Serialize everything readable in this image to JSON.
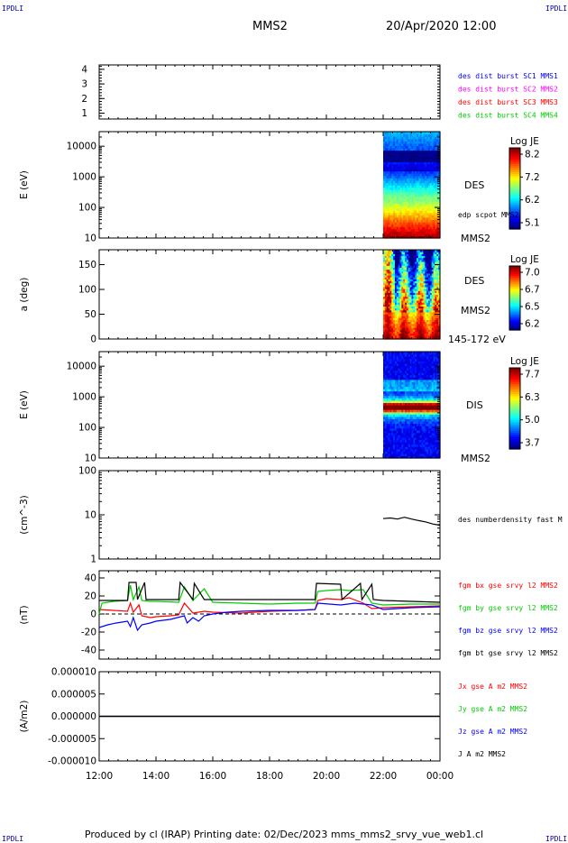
{
  "header": {
    "corner_label": "IPDLI",
    "spacecraft": "MMS2",
    "datetime": "20/Apr/2020 12:00"
  },
  "footer": {
    "text": "Produced by cl (IRAP)   Printing date: 02/Dec/2023   mms_mms2_srvy_vue_web1.cl"
  },
  "colors": {
    "mms1": "#0000ff",
    "mms2": "#ff00ff",
    "mms3": "#ff0000",
    "mms4": "#00cc00",
    "bx": "#ff0000",
    "by": "#00cc00",
    "bz": "#0000ff",
    "bt": "#000000"
  },
  "chart_data": [
    {
      "type": "line",
      "id": "availability",
      "xaxis": {
        "ticks": [
          "12:00",
          "14:00",
          "16:00",
          "18:00",
          "20:00",
          "22:00",
          "00:00"
        ]
      },
      "yticks": [
        "1",
        "2",
        "3",
        "4"
      ],
      "ylim": [
        0.6,
        4.3
      ],
      "legend": [
        "des dist burst SC1 MMS1",
        "des dist burst SC2 MMS2",
        "des dist burst SC3 MMS3",
        "des dist burst SC4 MMS4"
      ],
      "legend_colors": [
        "#0000ff",
        "#ff00ff",
        "#ff0000",
        "#00cc00"
      ]
    },
    {
      "type": "heatmap",
      "id": "des-energy",
      "ylabel": "E (eV)",
      "yticks": [
        "10",
        "100",
        "1000",
        "10000"
      ],
      "yscale": "log",
      "ylim": [
        10,
        30000
      ],
      "xrange_data": [
        "22:00",
        "00:00"
      ],
      "colorbar": {
        "title": "Log JE",
        "ticks": [
          "8.2",
          "7.2",
          "6.2",
          "5.1"
        ]
      },
      "right_labels": [
        "DES",
        "edp scpot MMS2",
        "MMS2"
      ]
    },
    {
      "type": "heatmap",
      "id": "des-pitch",
      "ylabel": "a (deg)",
      "yticks": [
        "0",
        "50",
        "100",
        "150"
      ],
      "ylim": [
        0,
        180
      ],
      "xrange_data": [
        "22:00",
        "00:00"
      ],
      "colorbar": {
        "title": "Log JE",
        "ticks": [
          "7.0",
          "6.7",
          "6.5",
          "6.2"
        ]
      },
      "right_labels": [
        "DES",
        "MMS2",
        "145-172 eV"
      ]
    },
    {
      "type": "heatmap",
      "id": "dis-energy",
      "ylabel": "E (eV)",
      "yticks": [
        "10",
        "100",
        "1000",
        "10000"
      ],
      "yscale": "log",
      "ylim": [
        10,
        30000
      ],
      "xrange_data": [
        "22:00",
        "00:00"
      ],
      "colorbar": {
        "title": "Log JE",
        "ticks": [
          "7.7",
          "6.3",
          "5.0",
          "3.7"
        ]
      },
      "right_labels": [
        "DIS",
        "MMS2"
      ]
    },
    {
      "type": "line",
      "id": "density",
      "ylabel": "(cm^-3)",
      "yticks": [
        "1",
        "10",
        "100"
      ],
      "yscale": "log",
      "ylim": [
        1,
        100
      ],
      "series": [
        {
          "name": "des numberdensity fast M",
          "color": "#000000",
          "x": [
            22.0,
            22.25,
            22.5,
            22.75,
            23.0,
            23.25,
            23.5,
            23.75,
            24.0
          ],
          "y": [
            8.2,
            8.5,
            8.0,
            8.8,
            8.0,
            7.4,
            6.9,
            6.2,
            5.8
          ]
        }
      ]
    },
    {
      "type": "line",
      "id": "fgm",
      "ylabel": "(nT)",
      "yticks": [
        "-40",
        "-20",
        "0",
        "20",
        "40"
      ],
      "ylim": [
        -50,
        48
      ],
      "zero_line": true,
      "series": [
        {
          "name": "fgm bx gse srvy l2 MMS2",
          "color": "#ff0000",
          "x": [
            12.0,
            12.5,
            13.0,
            13.1,
            13.2,
            13.4,
            13.5,
            13.8,
            14.0,
            14.5,
            14.8,
            15.0,
            15.3,
            15.7,
            16.0,
            17.0,
            18.0,
            19.0,
            19.6,
            19.7,
            20.0,
            20.5,
            20.8,
            21.3,
            21.6,
            22.0,
            23.0,
            24.0
          ],
          "y": [
            5,
            4,
            3,
            12,
            2,
            10,
            -2,
            -4,
            -3,
            -2,
            -1,
            12,
            1,
            3,
            2,
            1,
            3,
            4,
            5,
            15,
            17,
            16,
            18,
            12,
            6,
            7,
            8,
            9
          ]
        },
        {
          "name": "fgm by gse srvy l2 MMS2",
          "color": "#00cc00",
          "x": [
            12.0,
            12.1,
            12.5,
            13.0,
            13.1,
            13.2,
            13.4,
            13.5,
            13.8,
            14.0,
            14.8,
            15.0,
            15.3,
            15.7,
            16.0,
            17.0,
            18.0,
            19.0,
            19.6,
            19.7,
            20.0,
            20.5,
            20.8,
            21.3,
            21.6,
            22.0,
            23.0,
            24.0
          ],
          "y": [
            0,
            12,
            14,
            15,
            32,
            16,
            30,
            15,
            14,
            14,
            13,
            30,
            15,
            28,
            13,
            12,
            11,
            12,
            12,
            25,
            26,
            27,
            26,
            27,
            12,
            10,
            11,
            11
          ]
        },
        {
          "name": "fgm bz gse srvy l2 MMS2",
          "color": "#0000ff",
          "x": [
            12.0,
            12.3,
            12.6,
            13.0,
            13.1,
            13.2,
            13.35,
            13.5,
            13.8,
            14.0,
            14.5,
            15.0,
            15.1,
            15.3,
            15.5,
            15.7,
            16.0,
            16.5,
            17.0,
            18.0,
            19.0,
            19.6,
            19.7,
            20.5,
            21.0,
            21.6,
            22.0,
            22.5,
            23.0,
            24.0
          ],
          "y": [
            -15,
            -12,
            -10,
            -8,
            -14,
            -4,
            -18,
            -12,
            -10,
            -8,
            -6,
            -2,
            -10,
            -4,
            -8,
            -2,
            0,
            2,
            3,
            4,
            4,
            5,
            12,
            10,
            12,
            10,
            5,
            6,
            7,
            8
          ]
        },
        {
          "name": "fgm bt gse srvy l2 MMS2",
          "color": "#000000",
          "x": [
            12.0,
            13.0,
            13.05,
            13.3,
            13.35,
            13.6,
            13.65,
            14.0,
            14.8,
            14.85,
            15.3,
            15.35,
            15.7,
            15.75,
            16.0,
            17.0,
            19.0,
            19.6,
            19.65,
            20.5,
            20.55,
            21.2,
            21.25,
            21.6,
            21.65,
            22.0,
            23.0,
            24.0
          ],
          "y": [
            15,
            15,
            35,
            35,
            16,
            35,
            16,
            16,
            16,
            35,
            16,
            34,
            16,
            16,
            16,
            16,
            16,
            16,
            34,
            33,
            16,
            34,
            16,
            33,
            16,
            15,
            14,
            13
          ]
        }
      ]
    },
    {
      "type": "line",
      "id": "current",
      "ylabel": "(A/m2)",
      "yticks": [
        "-0.000010",
        "-0.000005",
        "0.000000",
        "0.000005",
        "0.000010"
      ],
      "ylim": [
        -1e-05,
        1e-05
      ],
      "series": [
        {
          "name": "Jx gse A m2 MMS2",
          "color": "#ff0000",
          "x": [
            12,
            24
          ],
          "y": [
            0,
            0
          ]
        },
        {
          "name": "Jy gse A m2 MMS2",
          "color": "#00cc00",
          "x": [
            12,
            24
          ],
          "y": [
            0,
            0
          ]
        },
        {
          "name": "Jz gse A m2 MMS2",
          "color": "#0000ff",
          "x": [
            12,
            24
          ],
          "y": [
            0,
            0
          ]
        },
        {
          "name": "J A m2 MMS2",
          "color": "#000000",
          "x": [
            12,
            24
          ],
          "y": [
            0,
            0
          ]
        }
      ]
    }
  ]
}
